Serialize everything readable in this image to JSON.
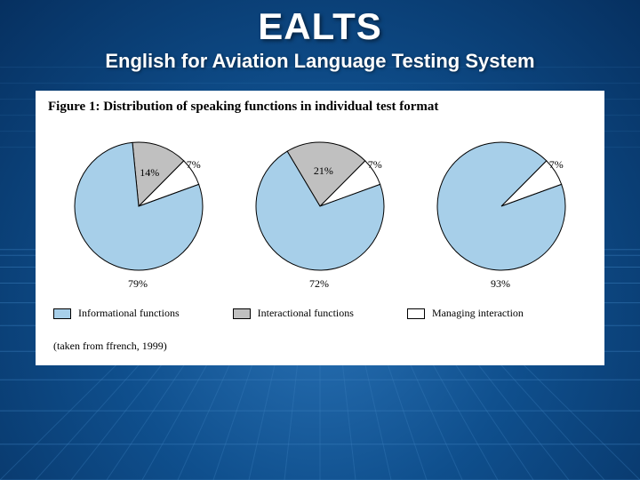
{
  "header": {
    "title": "EALTS",
    "subtitle": "English for Aviation Language Testing System"
  },
  "figure": {
    "title": "Figure 1: Distribution of speaking functions in individual test format",
    "citation": "(taken from ffrench, 1999)",
    "colors": {
      "informational": "#a7cfe9",
      "interactional": "#c0c0c0",
      "managing": "#ffffff",
      "stroke": "#000000",
      "background": "#ffffff"
    },
    "pies": [
      {
        "slices": [
          {
            "key": "managing",
            "value": 7,
            "label": "7%"
          },
          {
            "key": "interactional",
            "value": 14,
            "label": "14%"
          },
          {
            "key": "informational",
            "value": 79,
            "label": "79%"
          }
        ]
      },
      {
        "slices": [
          {
            "key": "managing",
            "value": 7,
            "label": "7%"
          },
          {
            "key": "interactional",
            "value": 21,
            "label": "21%"
          },
          {
            "key": "informational",
            "value": 72,
            "label": "72%"
          }
        ]
      },
      {
        "slices": [
          {
            "key": "managing",
            "value": 7,
            "label": "7%"
          },
          {
            "key": "informational",
            "value": 93,
            "label": "93%"
          }
        ]
      }
    ],
    "pie_style": {
      "radius": 72,
      "start_angle_deg": -20,
      "direction": "counterclockwise",
      "stroke_width": 1,
      "label_offset": 22,
      "label_fontsize": 12
    },
    "legend": [
      {
        "key": "informational",
        "label": "Informational functions"
      },
      {
        "key": "interactional",
        "label": "Interactional functions"
      },
      {
        "key": "managing",
        "label": "Managing interaction"
      }
    ]
  },
  "background": {
    "grid_color": "#3b7fbd",
    "grid_stroke_width": 1
  }
}
